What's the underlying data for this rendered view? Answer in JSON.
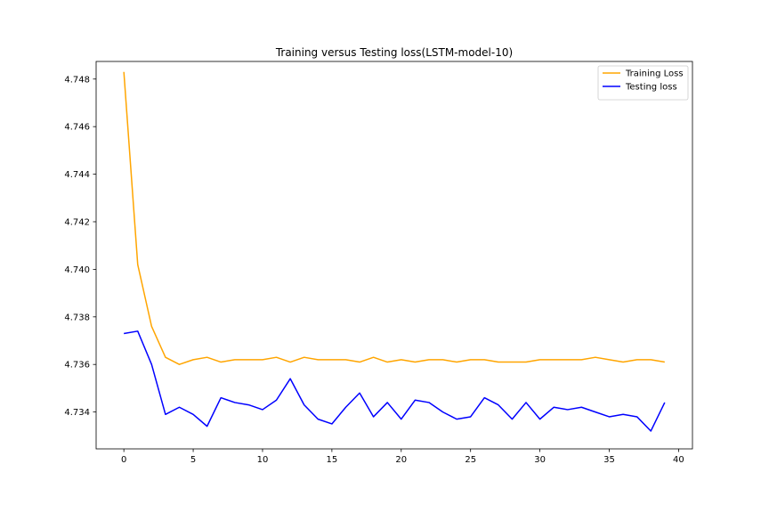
{
  "chart_data": {
    "type": "line",
    "title": "Training versus Testing loss(LSTM-model-10)",
    "xlabel": "",
    "ylabel": "",
    "xlim": [
      -2,
      41
    ],
    "ylim": [
      4.73245,
      4.74874
    ],
    "xticks": [
      0,
      5,
      10,
      15,
      20,
      25,
      30,
      35,
      40
    ],
    "yticks": [
      4.734,
      4.736,
      4.738,
      4.74,
      4.742,
      4.744,
      4.746,
      4.748
    ],
    "ytick_labels": [
      "4.734",
      "4.736",
      "4.738",
      "4.740",
      "4.742",
      "4.744",
      "4.746",
      "4.748"
    ],
    "grid": false,
    "legend_position": "top-right",
    "x": [
      0,
      1,
      2,
      3,
      4,
      5,
      6,
      7,
      8,
      9,
      10,
      11,
      12,
      13,
      14,
      15,
      16,
      17,
      18,
      19,
      20,
      21,
      22,
      23,
      24,
      25,
      26,
      27,
      28,
      29,
      30,
      31,
      32,
      33,
      34,
      35,
      36,
      37,
      38,
      39
    ],
    "series": [
      {
        "name": "Training Loss",
        "color": "#FFA500",
        "values": [
          4.7483,
          4.7402,
          4.7376,
          4.7363,
          4.736,
          4.7362,
          4.7363,
          4.7361,
          4.7362,
          4.7362,
          4.7362,
          4.7363,
          4.7361,
          4.7363,
          4.7362,
          4.7362,
          4.7362,
          4.7361,
          4.7363,
          4.7361,
          4.7362,
          4.7361,
          4.7362,
          4.7362,
          4.7361,
          4.7362,
          4.7362,
          4.7361,
          4.7361,
          4.7361,
          4.7362,
          4.7362,
          4.7362,
          4.7362,
          4.7363,
          4.7362,
          4.7361,
          4.7362,
          4.7362,
          4.7361
        ]
      },
      {
        "name": "Testing loss",
        "color": "#0000FF",
        "values": [
          4.7373,
          4.7374,
          4.736,
          4.7339,
          4.7342,
          4.7339,
          4.7334,
          4.7346,
          4.7344,
          4.7343,
          4.7341,
          4.7345,
          4.7354,
          4.7343,
          4.7337,
          4.7335,
          4.7342,
          4.7348,
          4.7338,
          4.7344,
          4.7337,
          4.7345,
          4.7344,
          4.734,
          4.7337,
          4.7338,
          4.7346,
          4.7343,
          4.7337,
          4.7344,
          4.7337,
          4.7342,
          4.7341,
          4.7342,
          4.734,
          4.7338,
          4.7339,
          4.7338,
          4.7332,
          4.7344
        ]
      }
    ]
  }
}
